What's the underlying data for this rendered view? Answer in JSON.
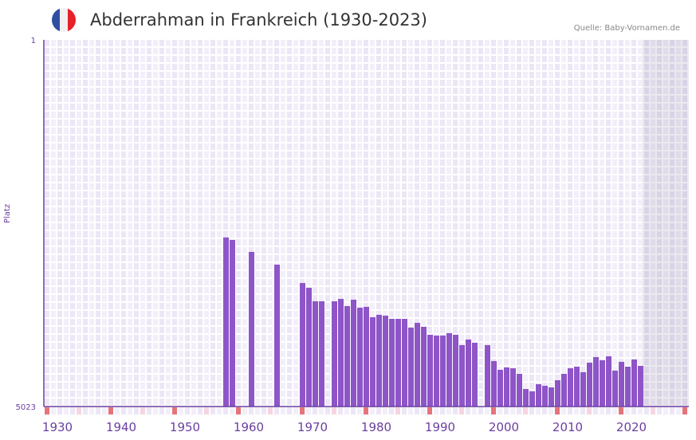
{
  "header": {
    "title": "Abderrahman in Frankreich (1930-2023)",
    "source": "Quelle: Baby-Vornamen.de",
    "flag_colors": [
      "#2f4fa2",
      "#f1f1f1",
      "#e62129"
    ]
  },
  "chart_data": {
    "type": "bar",
    "title": "Abderrahman in Frankreich (1930-2023)",
    "xlabel": "",
    "ylabel": "Platz",
    "y_ticks": [
      "1",
      "5023"
    ],
    "ylim": [
      5023,
      1
    ],
    "xlim": [
      1928,
      2028
    ],
    "x_ticks": [
      "1930",
      "1940",
      "1950",
      "1960",
      "1970",
      "1980",
      "1990",
      "2000",
      "2010",
      "2020"
    ],
    "shaded_from": 2022,
    "bar_color": "#8e55c8",
    "x": [
      1956,
      1957,
      1960,
      1964,
      1968,
      1969,
      1970,
      1971,
      1973,
      1974,
      1975,
      1976,
      1977,
      1978,
      1979,
      1980,
      1981,
      1982,
      1983,
      1984,
      1985,
      1986,
      1987,
      1988,
      1989,
      1990,
      1991,
      1992,
      1993,
      1994,
      1995,
      1997,
      1998,
      1999,
      2000,
      2001,
      2002,
      2003,
      2004,
      2005,
      2006,
      2007,
      2008,
      2009,
      2010,
      2011,
      2012,
      2013,
      2014,
      2015,
      2016,
      2017,
      2018,
      2019,
      2020,
      2021
    ],
    "values": [
      2708,
      2741,
      2905,
      3080,
      3331,
      3396,
      3582,
      3582,
      3582,
      3549,
      3647,
      3560,
      3669,
      3658,
      3800,
      3767,
      3778,
      3822,
      3822,
      3822,
      3942,
      3877,
      3931,
      4040,
      4051,
      4051,
      4018,
      4040,
      4181,
      4105,
      4149,
      4181,
      4400,
      4520,
      4488,
      4499,
      4575,
      4783,
      4815,
      4717,
      4739,
      4761,
      4663,
      4575,
      4499,
      4477,
      4553,
      4422,
      4346,
      4389,
      4335,
      4531,
      4411,
      4477,
      4379,
      4466
    ]
  }
}
